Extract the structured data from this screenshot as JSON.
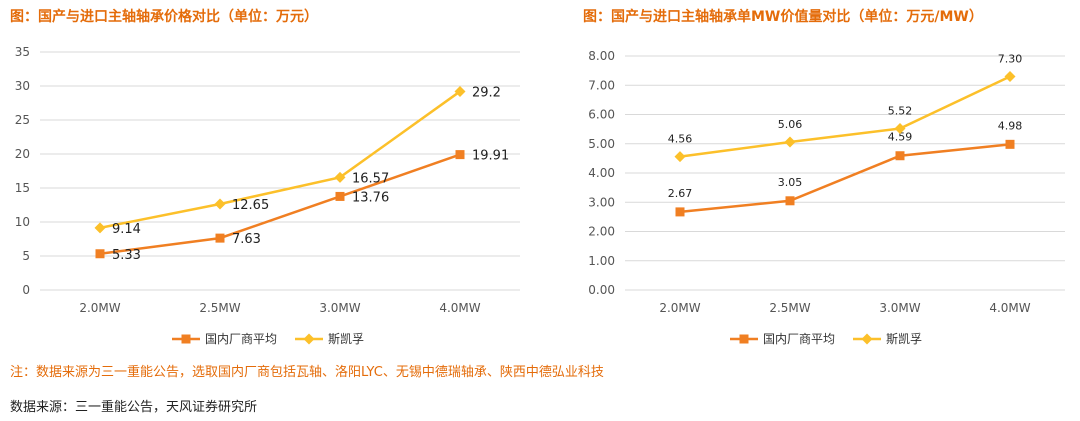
{
  "note": "注：数据来源为三一重能公告，选取国内厂商包括瓦轴、洛阳LYC、无锡中德瑞轴承、陕西中德弘业科技",
  "source": "数据来源：三一重能公告，天风证券研究所",
  "chart_data": [
    {
      "type": "line",
      "title": "图：国产与进口主轴轴承价格对比（单位：万元）",
      "categories": [
        "2.0MW",
        "2.5MW",
        "3.0MW",
        "4.0MW"
      ],
      "ylim": [
        0,
        35
      ],
      "yticks": [
        "0",
        "5",
        "10",
        "15",
        "20",
        "25",
        "30",
        "35"
      ],
      "series": [
        {
          "name": "国内厂商平均",
          "values": [
            5.33,
            7.63,
            13.76,
            19.91
          ],
          "labels": [
            "5.33",
            "7.63",
            "13.76",
            "19.91"
          ],
          "color": "#F07F22",
          "marker": "square"
        },
        {
          "name": "斯凯孚",
          "values": [
            9.14,
            12.65,
            16.57,
            29.2
          ],
          "labels": [
            "9.14",
            "12.65",
            "16.57",
            "29.2"
          ],
          "color": "#FCC02A",
          "marker": "diamond"
        }
      ]
    },
    {
      "type": "line",
      "title": "图：国产与进口主轴轴承单MW价值量对比（单位：万元/MW）",
      "categories": [
        "2.0MW",
        "2.5MW",
        "3.0MW",
        "4.0MW"
      ],
      "ylim": [
        0,
        8
      ],
      "yticks": [
        "0.00",
        "1.00",
        "2.00",
        "3.00",
        "4.00",
        "5.00",
        "6.00",
        "7.00",
        "8.00"
      ],
      "series": [
        {
          "name": "国内厂商平均",
          "values": [
            2.67,
            3.05,
            4.59,
            4.98
          ],
          "labels": [
            "2.67",
            "3.05",
            "4.59",
            "4.98"
          ],
          "color": "#F07F22",
          "marker": "square"
        },
        {
          "name": "斯凯孚",
          "values": [
            4.56,
            5.06,
            5.52,
            7.3
          ],
          "labels": [
            "4.56",
            "5.06",
            "5.52",
            "7.30"
          ],
          "color": "#FCC02A",
          "marker": "diamond"
        }
      ]
    }
  ]
}
